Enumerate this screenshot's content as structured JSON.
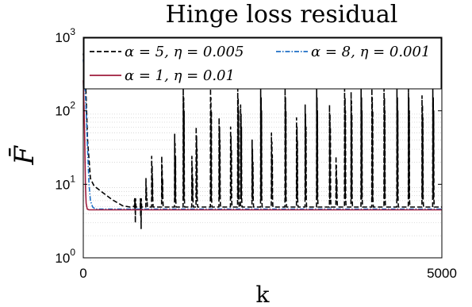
{
  "chart_data": {
    "type": "line",
    "title": "Hinge loss residual",
    "xlabel": "k",
    "ylabel": "F̄",
    "xlim": [
      0,
      5000
    ],
    "ylim": [
      1,
      1000
    ],
    "yscale": "log",
    "x_ticks": [
      {
        "value": 0,
        "label": "0"
      },
      {
        "value": 5000,
        "label": "5000"
      }
    ],
    "y_ticks": [
      {
        "value": 1,
        "base": "10",
        "exp": "0"
      },
      {
        "value": 10,
        "base": "10",
        "exp": "1"
      },
      {
        "value": 100,
        "base": "10",
        "exp": "2"
      },
      {
        "value": 1000,
        "base": "10",
        "exp": "3"
      }
    ],
    "grid": "minor y dotted",
    "legend_position": "top",
    "series": [
      {
        "name": "α = 5, η = 0.005",
        "color": "#000000",
        "dash": "dashed",
        "decay": [
          [
            0,
            600
          ],
          [
            30,
            300
          ],
          [
            60,
            40
          ],
          [
            100,
            12
          ],
          [
            150,
            9.5
          ],
          [
            250,
            8
          ],
          [
            400,
            6.2
          ],
          [
            550,
            5.1
          ],
          [
            650,
            4.9
          ],
          [
            710,
            5
          ]
        ],
        "steady": 4.9,
        "spikes": [
          [
            720,
            6
          ],
          [
            800,
            5
          ],
          [
            880,
            12
          ],
          [
            960,
            24
          ],
          [
            1100,
            24
          ],
          [
            1280,
            48
          ],
          [
            1400,
            200
          ],
          [
            1520,
            24
          ],
          [
            1580,
            60
          ],
          [
            1780,
            200
          ],
          [
            1900,
            80
          ],
          [
            2060,
            60
          ],
          [
            2160,
            200
          ],
          [
            2200,
            120
          ],
          [
            2360,
            40
          ],
          [
            2480,
            200
          ],
          [
            2630,
            50
          ],
          [
            2820,
            200
          ],
          [
            2980,
            80
          ],
          [
            3100,
            120
          ],
          [
            3260,
            200
          ],
          [
            3440,
            120
          ],
          [
            3530,
            24
          ],
          [
            3650,
            200
          ],
          [
            3740,
            180
          ],
          [
            3880,
            200
          ],
          [
            4030,
            200
          ],
          [
            4200,
            200
          ],
          [
            4380,
            200
          ],
          [
            4540,
            200
          ],
          [
            4730,
            160
          ],
          [
            4880,
            200
          ]
        ]
      },
      {
        "name": "α = 8, η = 0.001",
        "color": "#1f6fc5",
        "dash": "dashdot",
        "decay": [
          [
            0,
            500
          ],
          [
            20,
            250
          ],
          [
            40,
            100
          ],
          [
            60,
            30
          ],
          [
            80,
            10
          ],
          [
            100,
            6
          ],
          [
            130,
            4.9
          ],
          [
            170,
            4.6
          ]
        ],
        "steady": 4.6
      },
      {
        "name": "α = 1, η = 0.01",
        "color": "#9e1b3c",
        "dash": "solid",
        "decay": [
          [
            0,
            260
          ],
          [
            10,
            120
          ],
          [
            20,
            40
          ],
          [
            30,
            10
          ],
          [
            40,
            5.5
          ],
          [
            55,
            4.6
          ],
          [
            80,
            4.5
          ]
        ],
        "steady": 4.5
      }
    ]
  }
}
